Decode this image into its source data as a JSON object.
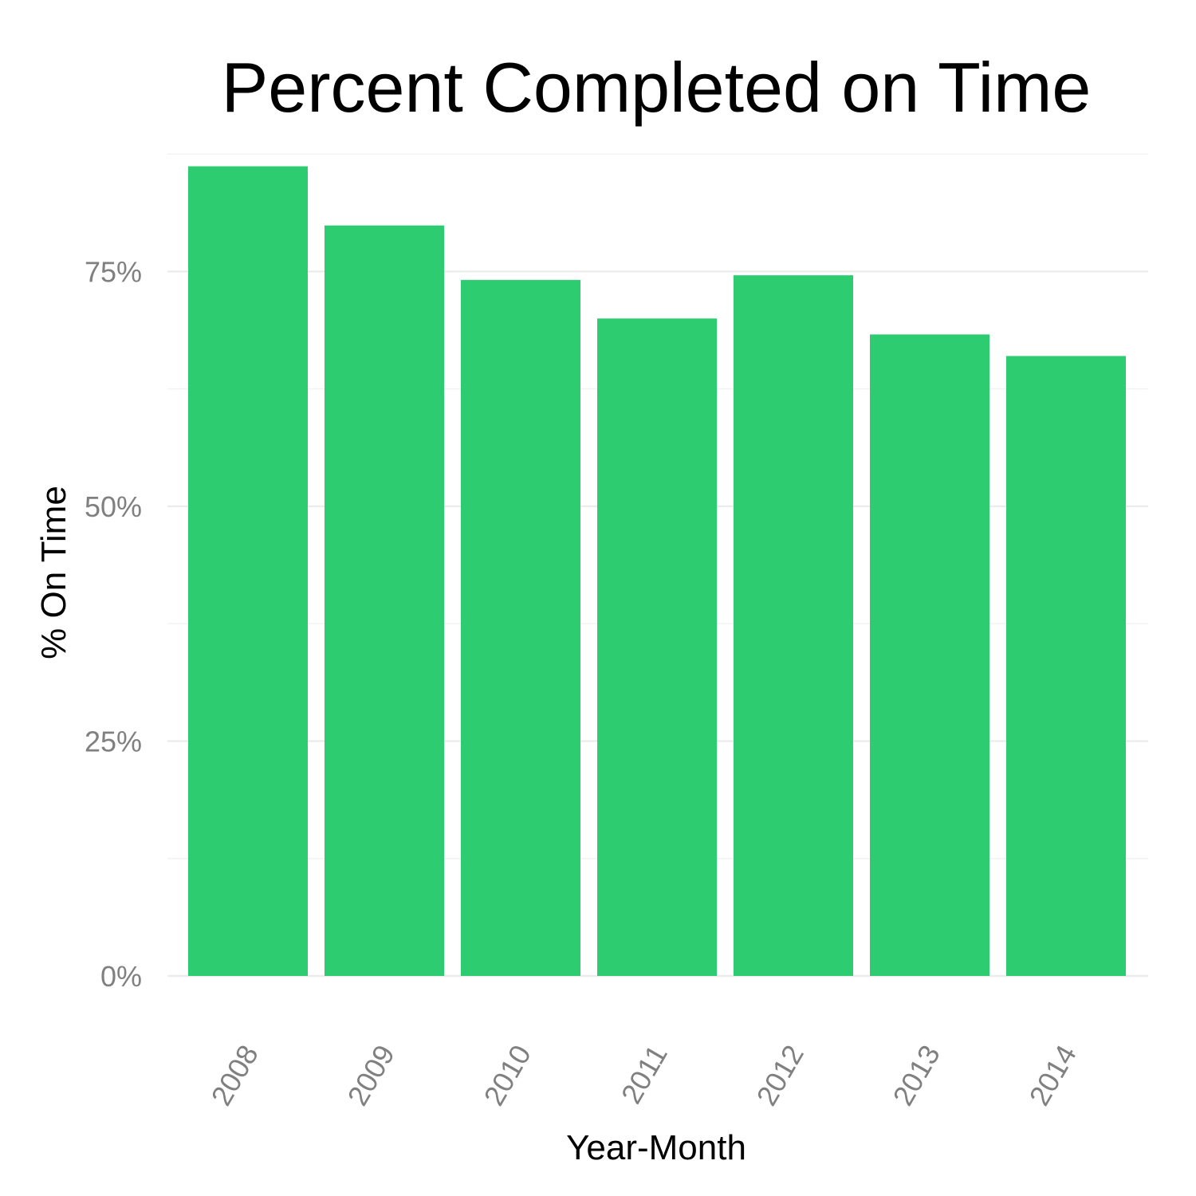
{
  "chart_data": {
    "type": "bar",
    "title": "Percent Completed on Time",
    "xlabel": "Year-Month",
    "ylabel": "% On Time",
    "categories": [
      "2008",
      "2009",
      "2010",
      "2011",
      "2012",
      "2013",
      "2014"
    ],
    "values": [
      0.862,
      0.799,
      0.741,
      0.7,
      0.746,
      0.683,
      0.66
    ],
    "ylim": [
      0,
      0.9
    ],
    "yticks": [
      0,
      0.25,
      0.5,
      0.75
    ],
    "ytick_labels": [
      "0%",
      "25%",
      "50%",
      "75%"
    ],
    "grid": true,
    "bar_color": "#2ecc71"
  }
}
